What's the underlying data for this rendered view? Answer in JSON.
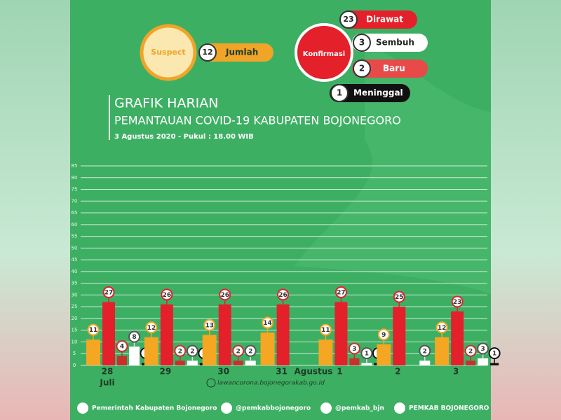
{
  "header": {
    "suspect": {
      "label": "Suspect",
      "value": 12,
      "unit": "Jumlah"
    },
    "konfirmasi": "Konfirmasi",
    "dirawat": {
      "value": 23,
      "label": "Dirawat"
    },
    "sembuh": {
      "value": 3,
      "label": "Sembuh"
    },
    "baru": {
      "value": 2,
      "label": "Baru"
    },
    "meninggal": {
      "value": 1,
      "label": "Meninggal"
    }
  },
  "chart_data": {
    "type": "bar",
    "title": "GRAFIK HARIAN",
    "subtitle": "PEMANTAUAN COVID-19 KABUPATEN BOJONEGORO",
    "date": "3 Agustus 2020 - Pukul : 18.00 WIB",
    "categories": [
      "28",
      "29",
      "30",
      "31",
      "1",
      "2",
      "3"
    ],
    "month_labels": [
      {
        "index": 0,
        "label": "Juli"
      },
      {
        "index": 4,
        "label": "Agustus"
      }
    ],
    "series": [
      {
        "color": "#f5a623",
        "values": [
          11,
          12,
          13,
          14,
          11,
          9,
          12
        ]
      },
      {
        "color": "#e4202a",
        "values": [
          27,
          26,
          26,
          26,
          27,
          25,
          23
        ]
      },
      {
        "color": "#c9302c",
        "values": [
          4,
          2,
          2,
          null,
          3,
          null,
          2
        ]
      },
      {
        "color": "#ffffff",
        "values": [
          8,
          2,
          2,
          null,
          1,
          2,
          3
        ]
      },
      {
        "color": "#111111",
        "values": [
          1,
          1,
          null,
          null,
          1,
          null,
          1
        ]
      }
    ],
    "ylim": [
      0,
      85
    ],
    "yticks": [
      0,
      5,
      10,
      15,
      20,
      25,
      30,
      35,
      40,
      45,
      50,
      55,
      60,
      65,
      70,
      75,
      80,
      85
    ],
    "grid": true
  },
  "footer": {
    "website": "lawancorona.bojonegorakab.go.id",
    "facebook": "Pemerintah Kabupaten Bojonegoro",
    "instagram": "@pemkabbojonegoro",
    "twitter": "@pemkab_bjn",
    "youtube": "PEMKAB BOJONEGORO"
  }
}
